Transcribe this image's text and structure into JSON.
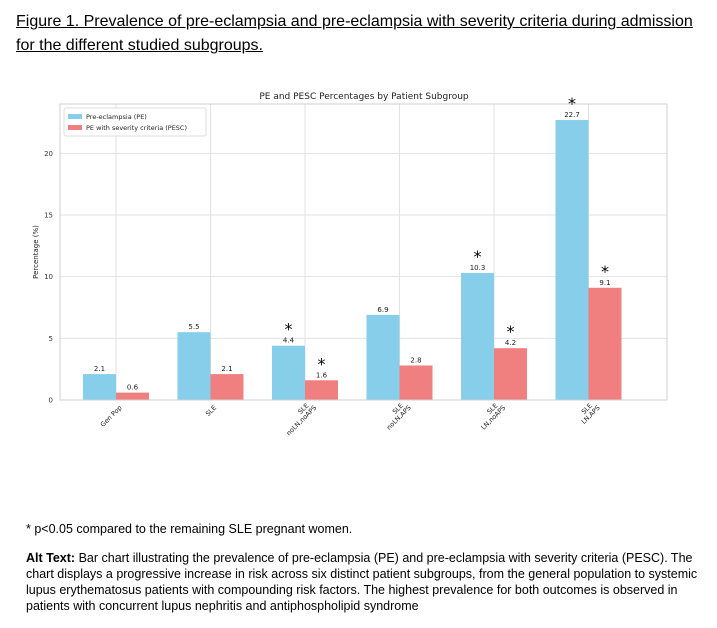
{
  "caption": "Figure 1. Prevalence of pre-eclampsia and pre-eclampsia with severity criteria during admission for the different studied subgroups.",
  "footnote": "* p<0.05 compared to the remaining SLE pregnant women.",
  "alt_text": {
    "label": "Alt Text:",
    "body": "Bar chart illustrating the prevalence of pre-eclampsia (PE) and pre-eclampsia with severity criteria (PESC). The chart displays a progressive increase in risk across six distinct patient subgroups, from the general population to systemic lupus erythematosus patients with compounding risk factors. The highest prevalence for both outcomes is observed in patients with concurrent lupus nephritis and antiphospholipid syndrome"
  },
  "chart_data": {
    "type": "bar",
    "title": "PE and PESC Percentages by Patient Subgroup",
    "xlabel": "",
    "ylabel": "Percentage (%)",
    "ylim": [
      0,
      24
    ],
    "yticks": [
      0,
      5,
      10,
      15,
      20
    ],
    "grid": true,
    "legend_position": "top-left",
    "significance_marker": "*",
    "categories": [
      {
        "line1": "Gen Pop",
        "line2": ""
      },
      {
        "line1": "SLE",
        "line2": ""
      },
      {
        "line1": "SLE",
        "line2": "noLN,noAPS"
      },
      {
        "line1": "SLE",
        "line2": "noLN,APS"
      },
      {
        "line1": "SLE",
        "line2": "LN,noAPS"
      },
      {
        "line1": "SLE",
        "line2": "LN,APS"
      }
    ],
    "series": [
      {
        "name": "Pre-eclampsia (PE)",
        "color": "#87ceeb",
        "values": [
          2.1,
          5.5,
          4.4,
          6.9,
          10.3,
          22.7
        ],
        "labels": [
          "2.1",
          "5.5",
          "4.4",
          "6.9",
          "10.3",
          "22.7"
        ],
        "significant": [
          false,
          false,
          true,
          false,
          true,
          true
        ]
      },
      {
        "name": "PE with severity criteria (PESC)",
        "color": "#f08080",
        "values": [
          0.6,
          2.1,
          1.6,
          2.8,
          4.2,
          9.1
        ],
        "labels": [
          "0.6",
          "2.1",
          "1.6",
          "2.8",
          "4.2",
          "9.1"
        ],
        "significant": [
          false,
          false,
          true,
          false,
          true,
          true
        ]
      }
    ]
  }
}
